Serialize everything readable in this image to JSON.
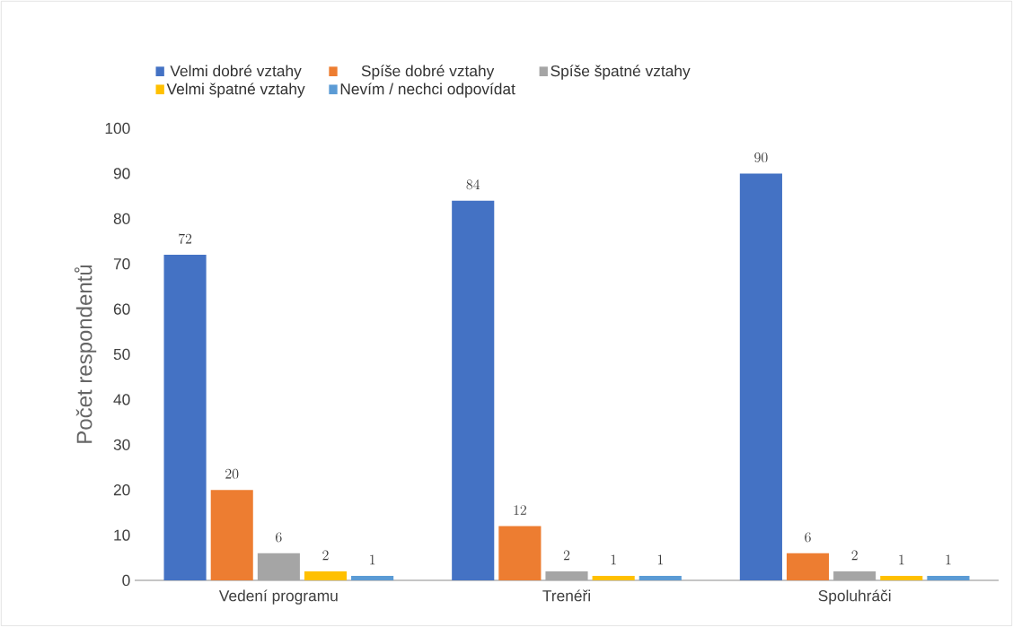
{
  "chart_data": {
    "type": "bar",
    "ylabel": "Počet respondentů",
    "categories": [
      "Vedení programu",
      "Trenéři",
      "Spoluhráči"
    ],
    "series": [
      {
        "name": "Velmi dobré vztahy",
        "color": "#4472c4",
        "values": [
          72,
          84,
          90
        ]
      },
      {
        "name": "Spíše dobré vztahy",
        "color": "#ed7d31",
        "values": [
          20,
          12,
          6
        ]
      },
      {
        "name": "Spíše špatné vztahy",
        "color": "#a5a5a5",
        "values": [
          6,
          2,
          2
        ]
      },
      {
        "name": "Velmi špatné vztahy",
        "color": "#ffc000",
        "values": [
          2,
          1,
          1
        ]
      },
      {
        "name": "Nevím / nechci odpovídat",
        "color": "#5b9bd5",
        "values": [
          1,
          1,
          1
        ]
      }
    ],
    "ylim": [
      0,
      100
    ],
    "yticks": [
      0,
      10,
      20,
      30,
      40,
      50,
      60,
      70,
      80,
      90,
      100
    ],
    "grid": false,
    "legend": "top",
    "data_labels": true
  }
}
